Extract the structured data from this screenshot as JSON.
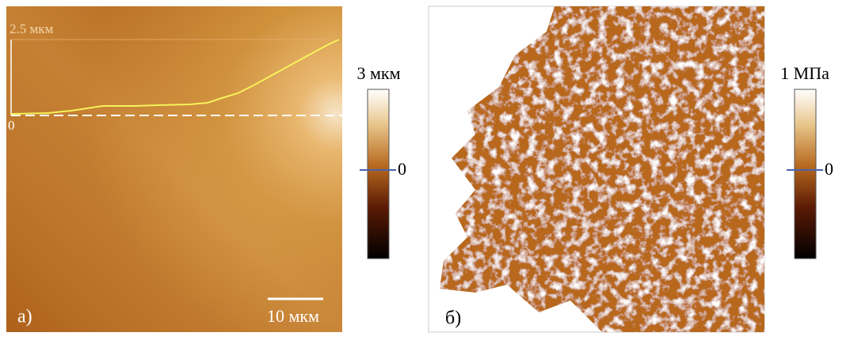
{
  "panels": [
    {
      "panel_label": "а)",
      "profile_top_label": "2.5 мкм",
      "profile_zero_label": "0",
      "scale_bar_label": "10 мкм",
      "colorbar": {
        "title": "3 мкм",
        "zero_label": "0"
      }
    },
    {
      "panel_label": "б)",
      "colorbar": {
        "title": "1 МПа",
        "zero_label": "0"
      }
    }
  ]
}
